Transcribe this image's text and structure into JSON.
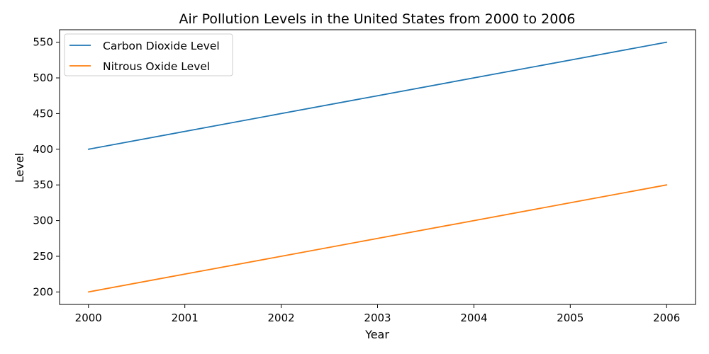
{
  "chart_data": {
    "type": "line",
    "title": "Air Pollution Levels in the United States from 2000 to 2006",
    "xlabel": "Year",
    "ylabel": "Level",
    "x": [
      2000,
      2001,
      2002,
      2003,
      2004,
      2005,
      2006
    ],
    "x_ticks": [
      "2000",
      "2001",
      "2002",
      "2003",
      "2004",
      "2005",
      "2006"
    ],
    "y_ticks": [
      "200",
      "250",
      "300",
      "350",
      "400",
      "450",
      "500",
      "550"
    ],
    "xlim": [
      1999.7,
      2006.3
    ],
    "ylim": [
      182.5,
      567.5
    ],
    "grid": false,
    "legend_position": "upper-left",
    "series": [
      {
        "name": "Carbon Dioxide Level",
        "color": "#1f77b4",
        "values": [
          400,
          425,
          450,
          475,
          500,
          525,
          550
        ]
      },
      {
        "name": "Nitrous Oxide Level",
        "color": "#ff7f0e",
        "values": [
          200,
          225,
          250,
          275,
          300,
          325,
          350
        ]
      }
    ]
  }
}
